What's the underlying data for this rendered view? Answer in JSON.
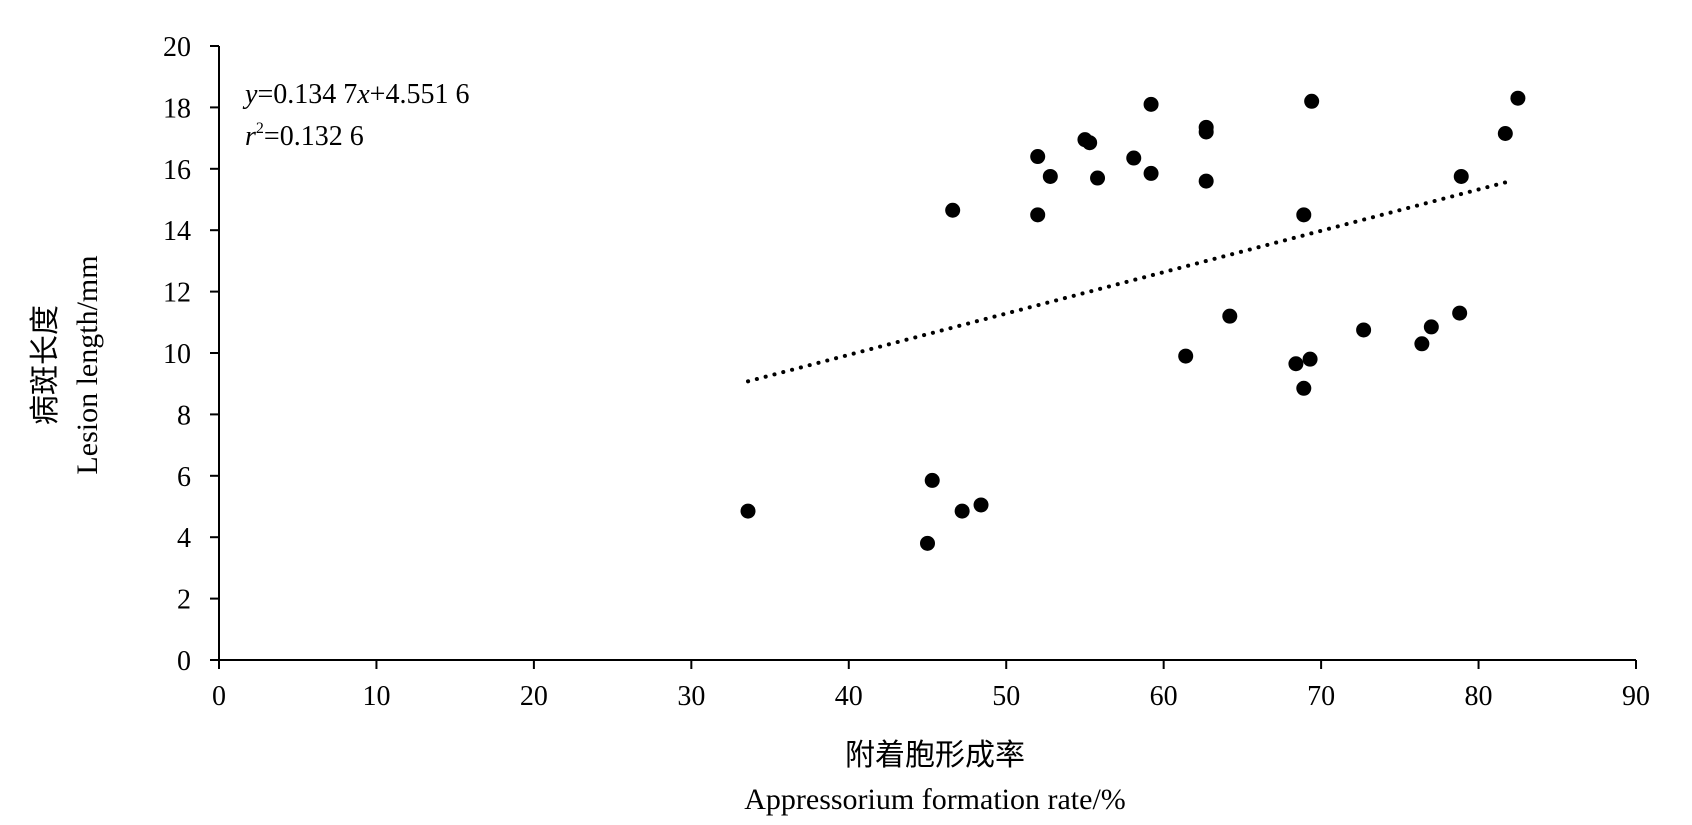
{
  "chart_data": {
    "type": "scatter",
    "x": [
      33.6,
      45.0,
      45.3,
      46.6,
      47.2,
      48.4,
      52.0,
      52.0,
      52.8,
      55.0,
      55.3,
      55.8,
      58.1,
      59.2,
      59.2,
      61.4,
      62.7,
      62.7,
      62.7,
      64.2,
      68.4,
      68.9,
      68.9,
      69.3,
      69.4,
      72.7,
      76.4,
      77.0,
      78.8,
      78.9,
      81.7,
      82.5
    ],
    "y": [
      4.85,
      3.8,
      5.85,
      14.65,
      4.85,
      5.05,
      16.4,
      14.5,
      15.75,
      16.95,
      16.85,
      15.7,
      16.35,
      18.1,
      15.85,
      9.9,
      17.35,
      17.2,
      15.6,
      11.2,
      9.65,
      8.85,
      14.5,
      9.8,
      18.2,
      10.75,
      10.3,
      10.85,
      11.3,
      15.75,
      17.15,
      18.3
    ],
    "trendline": {
      "type": "linear",
      "style": "dotted",
      "slope": 0.1347,
      "intercept": 4.5516,
      "x_range": [
        33.6,
        82.0
      ]
    },
    "xlim": [
      0,
      90
    ],
    "ylim": [
      0,
      20
    ],
    "xticks": [
      "0",
      "10",
      "20",
      "30",
      "40",
      "50",
      "60",
      "70",
      "80",
      "90"
    ],
    "yticks": [
      "0",
      "2",
      "4",
      "6",
      "8",
      "10",
      "12",
      "14",
      "16",
      "18",
      "20"
    ],
    "xlabel_cn": "附着胞形成率",
    "xlabel": "Appressorium formation rate/%",
    "ylabel_cn": "病斑长度",
    "ylabel": "Lesion length/mm",
    "equation": {
      "y_var": "y",
      "y_rest": "=0.134 7",
      "x_var": "x",
      "x_rest": "+4.551 6",
      "r_var": "r",
      "r_sup": "2",
      "r_rest": "=0.132 6"
    },
    "grid": false,
    "legend": "none",
    "marker_color": "#000000"
  }
}
